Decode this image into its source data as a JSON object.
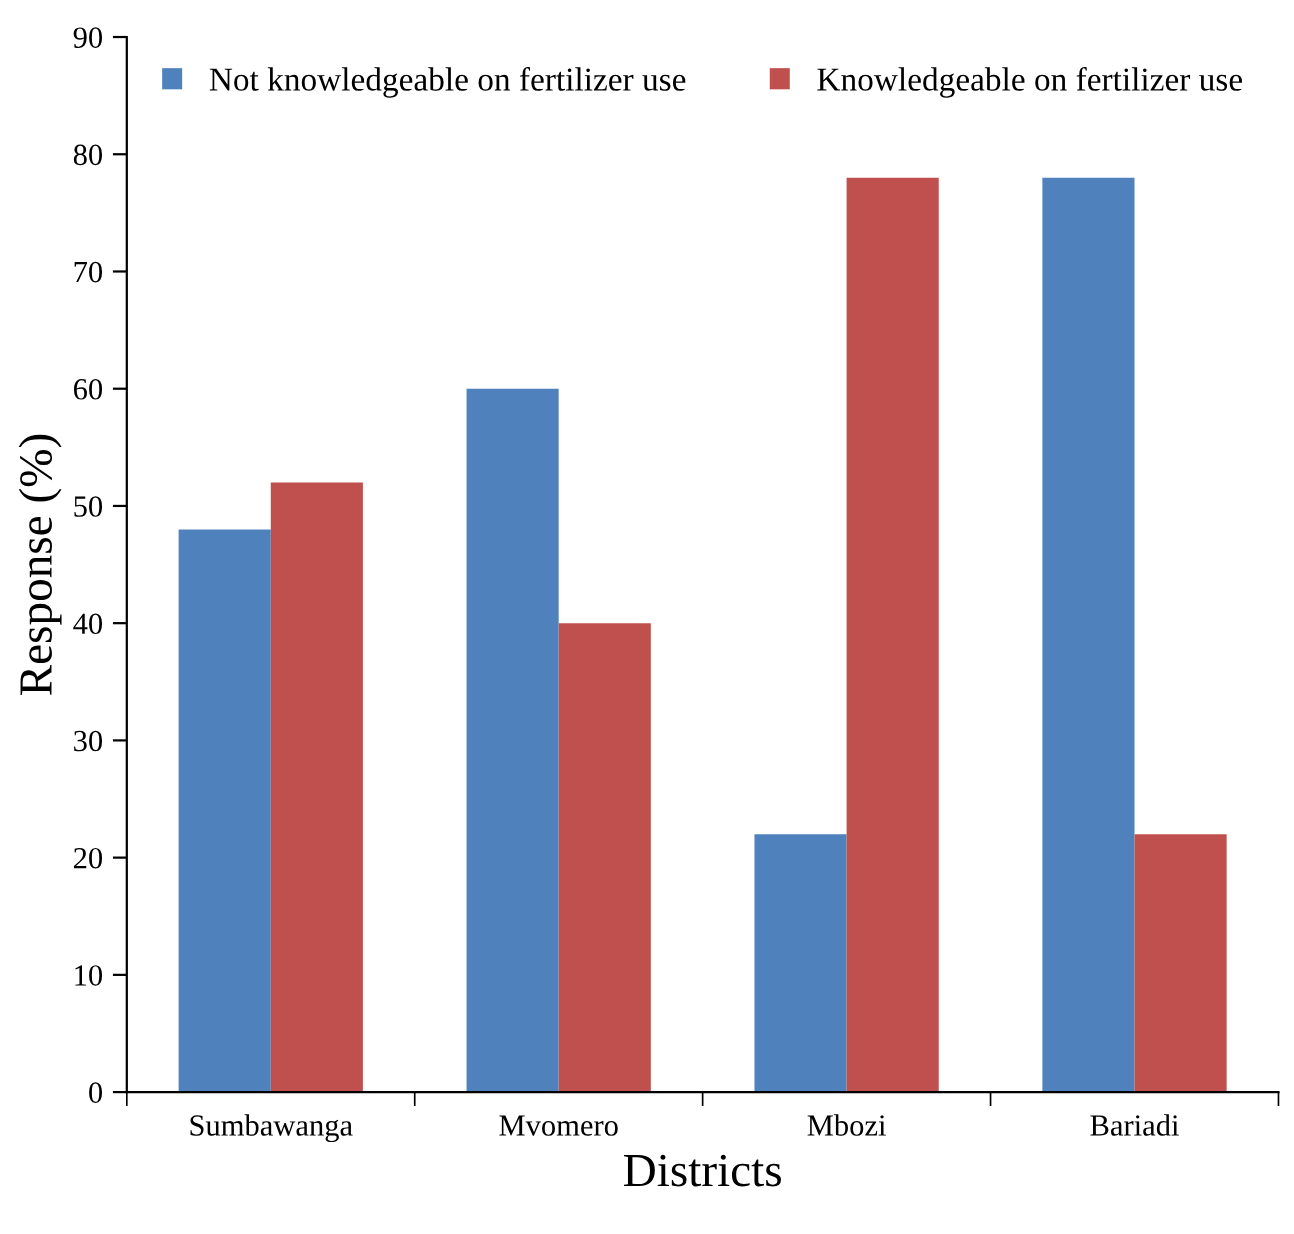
{
  "chart_data": {
    "type": "bar",
    "xlabel": "Districts",
    "ylabel": "Response (%)",
    "categories": [
      "Sumbawanga",
      "Mvomero",
      "Mbozi",
      "Bariadi"
    ],
    "series": [
      {
        "name": "Not knowledgeable on fertilizer use",
        "color": "#4f81bd",
        "values": [
          48,
          60,
          22,
          78
        ]
      },
      {
        "name": "Knowledgeable on fertilizer use",
        "color": "#c0504d",
        "values": [
          52,
          40,
          78,
          22
        ]
      }
    ],
    "ylim": [
      0,
      90
    ],
    "yticks": [
      0,
      10,
      20,
      30,
      40,
      50,
      60,
      70,
      80,
      90
    ],
    "grid": false,
    "legend": "top"
  }
}
